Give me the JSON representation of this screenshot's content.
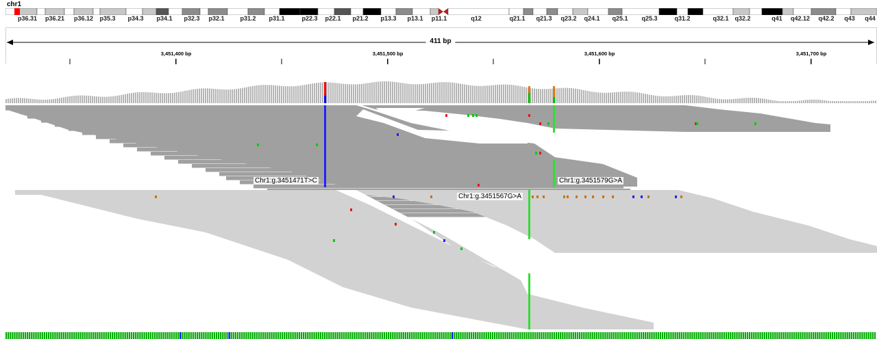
{
  "ideogram": {
    "chromosome": "chr1",
    "bands": [
      "p36.31",
      "p36.21",
      "p36.12",
      "p35.3",
      "p34.3",
      "p34.1",
      "p32.3",
      "p32.1",
      "p31.2",
      "p31.1",
      "p22.3",
      "p22.1",
      "p21.2",
      "p13.3",
      "p13.1",
      "p11.1",
      "q12",
      "q21.1",
      "q21.3",
      "q23.2",
      "q24.1",
      "q25.1",
      "q25.3",
      "q31.2",
      "q32.1",
      "q32.2",
      "q41",
      "q42.12",
      "q42.2",
      "q43",
      "q44"
    ],
    "colors": {
      "gpos100": "#000000",
      "gpos75": "#555555",
      "gpos50": "#8c8c8c",
      "gpos25": "#c8c8c8",
      "gneg": "#ffffff",
      "centromere": "#b22222",
      "current_region": "#ff0000"
    }
  },
  "ruler": {
    "span": "411 bp",
    "positions": [
      "3,451,400 bp",
      "3,451,500 bp",
      "3,451,600 bp",
      "3,451,700 bp"
    ]
  },
  "coverage": {
    "color": "#b4b4b4",
    "mismatch_colors": [
      "#ff0000",
      "#0000ff",
      "#00c800",
      "#e07b1a"
    ]
  },
  "alignments": {
    "group1_read_color": "#a0a0a0",
    "group2_read_color": "#d2d2d2",
    "mismatch_colors": {
      "A": "#00cc00",
      "C": "#2222ff",
      "G": "#d17105",
      "T": "#e01a1a"
    }
  },
  "variants": [
    {
      "label": "Chr1:g.3451471T>C",
      "color": "#2222ff"
    },
    {
      "label": "Chr1:g.3451579G>A",
      "color": "#33dd33"
    },
    {
      "label": "Chr1:g.3451567G>A",
      "color": "#33dd33"
    }
  ],
  "sequence": {
    "base_colors": {
      "A": "#00aa00",
      "C": "#0000ff",
      "G": "#d17105",
      "T": "#ff0000"
    }
  }
}
